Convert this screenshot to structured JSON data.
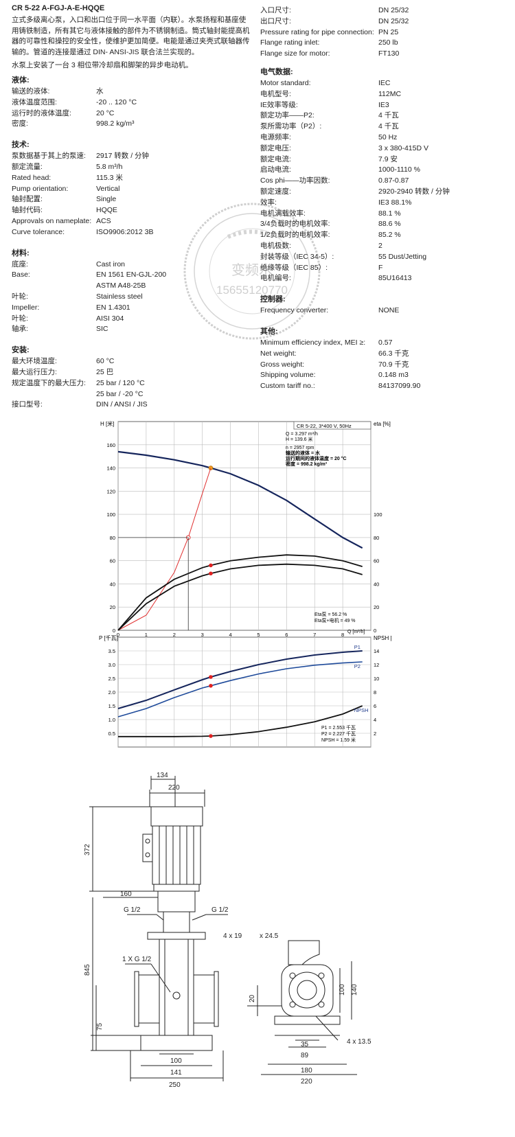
{
  "title": "CR 5-22 A-FGJ-A-E-HQQE",
  "description": [
    "立式多级离心泵，入口和出口位于同一水平面（内联）。水泵扬程和基座使",
    "用铸铁制造，所有其它与液体接触的部件为不锈钢制造。筒式轴封能提高机",
    "器的可靠性和操控的安全性，使维护更加简便。电能是通过夹壳式联轴器传",
    "输的。管道的连接是通过 DIN- ANSI-JIS 联合法兰实现的。"
  ],
  "description2": "水泵上安装了一台 3 相位带冷却扇和脚架的异步电动机。",
  "left_sections": [
    {
      "title": "液体:",
      "rows": [
        [
          "输送的液体:",
          "水"
        ],
        [
          "液体温度范围:",
          "-20 .. 120 °C"
        ],
        [
          "运行时的液体温度:",
          "20 °C"
        ],
        [
          "密度:",
          "998.2 kg/m³"
        ]
      ]
    },
    {
      "title": "技术:",
      "rows": [
        [
          "泵数据基于其上的泵速:",
          "2917 转数 / 分钟"
        ],
        [
          "额定流量:",
          "5.8 m³/h"
        ],
        [
          "Rated head:",
          "115.3 米"
        ],
        [
          "Pump orientation:",
          "Vertical"
        ],
        [
          "轴封配置:",
          "Single"
        ],
        [
          "轴封代码:",
          "HQQE"
        ],
        [
          "Approvals on nameplate:",
          "ACS"
        ],
        [
          "Curve tolerance:",
          "ISO9906:2012 3B"
        ]
      ]
    },
    {
      "title": "材料:",
      "rows": [
        [
          "底座:",
          "Cast iron"
        ],
        [
          "Base:",
          "EN 1561 EN-GJL-200"
        ],
        [
          "",
          "ASTM A48-25B"
        ],
        [
          "叶轮:",
          "Stainless steel"
        ],
        [
          "Impeller:",
          "EN 1.4301"
        ],
        [
          "叶轮:",
          "AISI 304"
        ],
        [
          "轴承:",
          "SIC"
        ]
      ]
    },
    {
      "title": "安装:",
      "rows": [
        [
          "最大环境温度:",
          "60 °C"
        ],
        [
          "最大运行压力:",
          "25 巴"
        ],
        [
          "规定温度下的最大压力:",
          "25 bar / 120 °C"
        ],
        [
          "",
          "25 bar / -20 °C"
        ],
        [
          "接口型号:",
          "DIN / ANSI / JIS"
        ]
      ]
    }
  ],
  "right_top_rows": [
    [
      "入口尺寸:",
      "DN 25/32"
    ],
    [
      "出口尺寸:",
      "DN 25/32"
    ],
    [
      "Pressure rating for pipe connection:",
      "PN 25"
    ],
    [
      "Flange rating inlet:",
      "250 lb"
    ],
    [
      "Flange size for motor:",
      "FT130"
    ]
  ],
  "right_sections": [
    {
      "title": "电气数据:",
      "rows": [
        [
          "Motor standard:",
          "IEC"
        ],
        [
          "电机型号:",
          "112MC"
        ],
        [
          "IE效率等级:",
          "IE3"
        ],
        [
          "额定功率——P2:",
          "4 千瓦"
        ],
        [
          "泵所需功率（P2）:",
          "4 千瓦"
        ],
        [
          "电源频率:",
          "50 Hz"
        ],
        [
          "额定电压:",
          "3 x 380-415D V"
        ],
        [
          "额定电流:",
          "7.9 安"
        ],
        [
          "启动电流:",
          "1000-1110 %"
        ],
        [
          "Cos phi——功率因数:",
          "0.87-0.87"
        ],
        [
          "额定速度:",
          "2920-2940 转数 / 分钟"
        ],
        [
          "效率:",
          "IE3 88.1%"
        ],
        [
          "电机满载效率:",
          "88.1 %"
        ],
        [
          "3/4负载时的电机效率:",
          "88.6 %"
        ],
        [
          "1/2负载时的电机效率:",
          "85.2 %"
        ],
        [
          "电机极数:",
          "2"
        ],
        [
          "封装等级（IEC 34-5）:",
          "55 Dust/Jetting"
        ],
        [
          "绝缘等级（IEC 85）:",
          "F"
        ],
        [
          "电机编号:",
          "85U16413"
        ]
      ]
    },
    {
      "title": "控制器:",
      "rows": [
        [
          "Frequency converter:",
          "NONE"
        ]
      ]
    },
    {
      "title": "其他:",
      "rows": [
        [
          "Minimum efficiency index, MEI ≥:",
          "0.57"
        ],
        [
          "Net weight:",
          "66.3 千克"
        ],
        [
          "Gross weight:",
          "70.9 千克"
        ],
        [
          "Shipping volume:",
          "0.148 m3"
        ],
        [
          "Custom tariff no.:",
          "84137099.90"
        ]
      ]
    }
  ],
  "watermark": {
    "text": "变频水",
    "phone": "15655120770"
  },
  "chart_data": [
    {
      "type": "line",
      "title": "CR 5-22, 3*400 V, 50Hz",
      "ylabel_left": "H\n[米]",
      "ylabel_right": "eta\n[%]",
      "xlabel": "Q [m³/h]",
      "x_ticks": [
        "0",
        "1",
        "2",
        "3",
        "4",
        "5",
        "6",
        "7",
        "8"
      ],
      "y_ticks_left": [
        "0",
        "20",
        "40",
        "60",
        "80",
        "100",
        "120",
        "140",
        "160"
      ],
      "y_ticks_right": [
        "0",
        "20",
        "40",
        "60",
        "80",
        "100"
      ],
      "xlim": [
        0,
        9
      ],
      "ylim": [
        0,
        180
      ],
      "series": [
        {
          "name": "",
          "role": "head",
          "x": [
            0,
            1,
            2,
            3,
            3.3,
            4,
            5,
            6,
            7,
            8,
            8.7
          ],
          "y": [
            154,
            151,
            147,
            142,
            140,
            135,
            125,
            112,
            96,
            80,
            71
          ]
        },
        {
          "name": "",
          "role": "system",
          "x": [
            0,
            1,
            2,
            2.5,
            3,
            3.3
          ],
          "y": [
            0,
            13,
            50,
            80,
            118,
            140
          ]
        },
        {
          "name": "",
          "role": "eta-pump",
          "x": [
            0,
            1,
            2,
            3,
            3.3,
            4,
            5,
            6,
            7,
            8,
            8.7
          ],
          "y": [
            0,
            28,
            44,
            54,
            56,
            60,
            63,
            65,
            64,
            60,
            55
          ]
        },
        {
          "name": "",
          "role": "eta-pump-motor",
          "x": [
            0,
            1,
            2,
            3,
            3.3,
            4,
            5,
            6,
            7,
            8,
            8.7
          ],
          "y": [
            0,
            23,
            38,
            47,
            49,
            53,
            56,
            57,
            56,
            53,
            48
          ]
        }
      ],
      "operating_point": {
        "Q": "Q = 3.297 m³/h",
        "H": "H = 139.6 米",
        "n": "n = 2957 rpm",
        "fluid": "输送的液体 = 水",
        "temp": "运行期间的液体温度 = 20 °C",
        "density": "密度 = 998.2 kg/m³"
      },
      "eta_labels": [
        "Eta泵 = 56.2 %",
        "Eta泵+电机 = 49 %"
      ]
    },
    {
      "type": "line",
      "ylabel_left": "P\n[千瓦]",
      "ylabel_right": "NPSH\n[米]",
      "y_ticks_left": [
        "0.5",
        "1.0",
        "1.5",
        "2.0",
        "2.5",
        "3.0",
        "3.5"
      ],
      "y_ticks_right": [
        "2",
        "4",
        "6",
        "8",
        "10",
        "12",
        "14"
      ],
      "xlim": [
        0,
        9
      ],
      "ylim": [
        0,
        4
      ],
      "series": [
        {
          "name": "P1",
          "x": [
            0,
            1,
            2,
            3,
            3.3,
            4,
            5,
            6,
            7,
            8,
            8.7
          ],
          "y": [
            1.4,
            1.7,
            2.08,
            2.45,
            2.55,
            2.75,
            3.0,
            3.2,
            3.35,
            3.45,
            3.5
          ]
        },
        {
          "name": "P2",
          "x": [
            0,
            1,
            2,
            3,
            3.3,
            4,
            5,
            6,
            7,
            8,
            8.7
          ],
          "y": [
            1.1,
            1.4,
            1.8,
            2.15,
            2.23,
            2.42,
            2.66,
            2.85,
            2.98,
            3.06,
            3.1
          ]
        },
        {
          "name": "NPSH",
          "x": [
            0,
            1,
            2,
            3,
            3.3,
            4,
            5,
            6,
            7,
            8,
            8.7
          ],
          "y": [
            0.38,
            0.38,
            0.38,
            0.39,
            0.4,
            0.45,
            0.56,
            0.72,
            0.92,
            1.2,
            1.5
          ]
        }
      ],
      "point_labels": [
        "P1 = 2.553 千瓦",
        "P2 = 2.227 千瓦",
        "NPSH = 1.59 米"
      ]
    }
  ],
  "drawing": {
    "dims": {
      "d134": "134",
      "d220": "220",
      "d372": "372",
      "d160": "160",
      "g1": "G 1/2",
      "g2": "G 1/2",
      "d845": "845",
      "g3": "1 X G 1/2",
      "d75": "75",
      "d100": "100",
      "d141": "141",
      "d250": "250",
      "s4x19": "4  x  19",
      "x245": "x 24.5",
      "d20": "20",
      "d100b": "100",
      "d140": "140",
      "d35": "35",
      "d89": "89",
      "d180": "180",
      "s4x135": "4  x  13.5",
      "d220b": "220"
    }
  }
}
